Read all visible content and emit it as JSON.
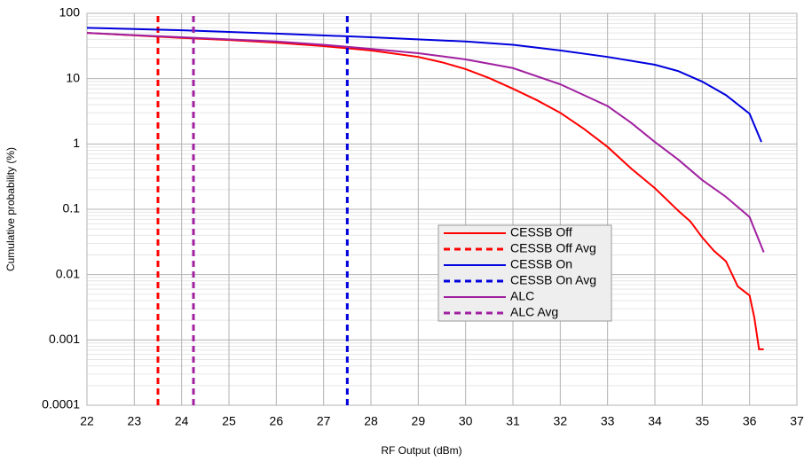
{
  "chart_data": {
    "type": "line",
    "xlabel": "RF Output (dBm)",
    "ylabel": "Cumulative probability (%)",
    "log_y": true,
    "grid": true,
    "legend": "center-right",
    "xlim": [
      22,
      37
    ],
    "xticks": [
      22,
      23,
      24,
      25,
      26,
      27,
      28,
      29,
      30,
      31,
      32,
      33,
      34,
      35,
      36,
      37
    ],
    "ylim": [
      0.0001,
      100
    ],
    "yticks": [
      100,
      10,
      1,
      0.1,
      0.01,
      0.001,
      0.0001
    ],
    "series": [
      {
        "name": "CESSB Off",
        "color": "#ff0000",
        "dash": false,
        "x": [
          22,
          23,
          24,
          25,
          26,
          27,
          28,
          29,
          29.5,
          30,
          30.5,
          31,
          31.5,
          32,
          32.5,
          33,
          33.5,
          34,
          34.5,
          34.75,
          35,
          35.25,
          35.5,
          35.75,
          36,
          36.1,
          36.2,
          36.3
        ],
        "values": [
          50,
          46,
          42,
          39,
          35.5,
          31.5,
          27,
          21.5,
          17.8,
          14,
          10.2,
          7,
          4.7,
          3,
          1.7,
          0.9,
          0.42,
          0.21,
          0.094,
          0.065,
          0.037,
          0.023,
          0.016,
          0.0066,
          0.0048,
          0.0022,
          0.00072,
          0.00072
        ]
      },
      {
        "name": "CESSB Off Avg",
        "color": "#ff0000",
        "dash": true,
        "x": [
          23.5,
          23.5
        ],
        "values": [
          0.0001,
          100
        ]
      },
      {
        "name": "CESSB On",
        "color": "#0000dd",
        "dash": false,
        "x": [
          22,
          24,
          26,
          28,
          30,
          31,
          32,
          33,
          34,
          34.5,
          35,
          35.5,
          36,
          36.25
        ],
        "values": [
          60,
          55,
          49,
          43,
          37,
          33,
          27,
          21.5,
          16.3,
          13,
          9,
          5.6,
          2.9,
          1.07
        ]
      },
      {
        "name": "CESSB On Avg",
        "color": "#0000dd",
        "dash": true,
        "x": [
          27.5,
          27.5
        ],
        "values": [
          0.0001,
          100
        ]
      },
      {
        "name": "ALC",
        "color": "#a020a0",
        "dash": false,
        "x": [
          22,
          24,
          26,
          27,
          28,
          29,
          30,
          31,
          32,
          33,
          33.5,
          34,
          34.5,
          35,
          35.5,
          36,
          36.1,
          36.3
        ],
        "values": [
          50,
          43,
          37,
          33,
          28.5,
          24.5,
          19.7,
          14.5,
          8.2,
          3.8,
          2.1,
          1.07,
          0.57,
          0.28,
          0.155,
          0.076,
          0.05,
          0.022
        ]
      },
      {
        "name": "ALC Avg",
        "color": "#a020a0",
        "dash": true,
        "x": [
          24.25,
          24.25
        ],
        "values": [
          0.0001,
          100
        ]
      }
    ]
  }
}
